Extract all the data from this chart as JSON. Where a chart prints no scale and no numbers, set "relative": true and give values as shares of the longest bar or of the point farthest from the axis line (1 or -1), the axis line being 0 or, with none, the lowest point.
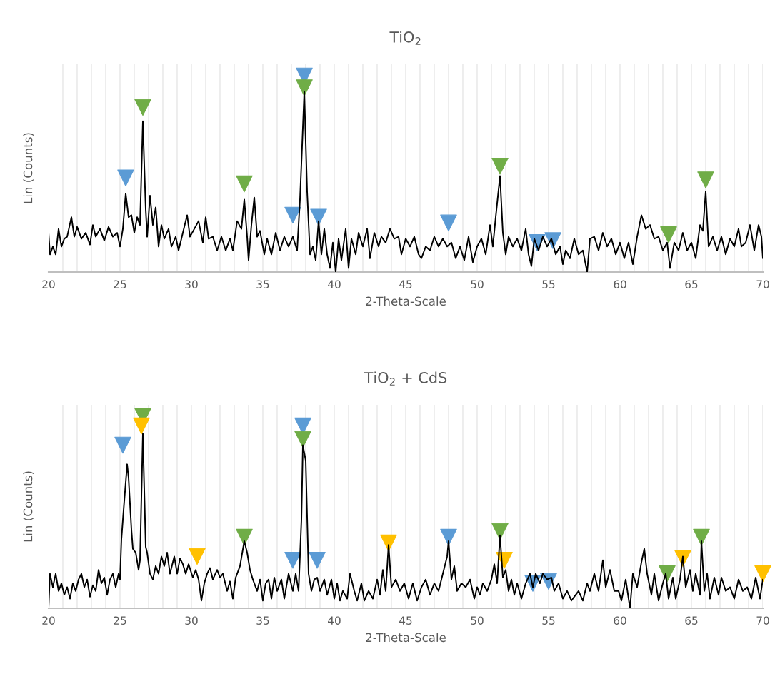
{
  "chart_data": [
    {
      "type": "line",
      "title": "TiO$_{2}$",
      "xlabel": "2-Theta-Scale",
      "ylabel": "Lin (Counts)",
      "xlim": [
        20,
        70
      ],
      "xticks": [
        20,
        25,
        30,
        35,
        40,
        45,
        50,
        55,
        60,
        65,
        70
      ],
      "relative": true,
      "grid": "x",
      "series": [
        {
          "color": "#000000",
          "x": [
            20.0,
            20.1,
            20.3,
            20.5,
            20.7,
            20.9,
            21.1,
            21.3,
            21.6,
            21.8,
            22.0,
            22.3,
            22.6,
            22.9,
            23.1,
            23.3,
            23.6,
            23.9,
            24.2,
            24.5,
            24.8,
            25.0,
            25.2,
            25.4,
            25.6,
            25.8,
            26.0,
            26.2,
            26.4,
            26.6,
            26.8,
            26.9,
            27.1,
            27.3,
            27.5,
            27.7,
            27.9,
            28.1,
            28.4,
            28.6,
            28.9,
            29.1,
            29.4,
            29.7,
            29.9,
            30.2,
            30.5,
            30.8,
            31.0,
            31.2,
            31.5,
            31.8,
            32.1,
            32.4,
            32.7,
            32.9,
            33.2,
            33.5,
            33.7,
            33.9,
            34.0,
            34.2,
            34.4,
            34.6,
            34.8,
            35.1,
            35.3,
            35.6,
            35.9,
            36.2,
            36.5,
            36.8,
            37.1,
            37.4,
            37.6,
            37.9,
            38.1,
            38.3,
            38.5,
            38.7,
            38.9,
            39.1,
            39.3,
            39.5,
            39.7,
            39.9,
            40.1,
            40.3,
            40.5,
            40.8,
            41.0,
            41.2,
            41.5,
            41.7,
            42.0,
            42.3,
            42.5,
            42.8,
            43.1,
            43.3,
            43.6,
            43.9,
            44.2,
            44.5,
            44.7,
            45.0,
            45.3,
            45.6,
            45.9,
            46.1,
            46.4,
            46.7,
            47.0,
            47.3,
            47.6,
            47.9,
            48.2,
            48.5,
            48.8,
            49.1,
            49.4,
            49.7,
            50.0,
            50.3,
            50.6,
            50.9,
            51.1,
            51.3,
            51.6,
            51.8,
            52.0,
            52.2,
            52.5,
            52.8,
            53.1,
            53.4,
            53.6,
            53.8,
            54.0,
            54.3,
            54.6,
            54.9,
            55.2,
            55.5,
            55.8,
            56.0,
            56.2,
            56.5,
            56.8,
            57.1,
            57.4,
            57.7,
            57.9,
            58.2,
            58.5,
            58.8,
            59.1,
            59.4,
            59.7,
            60.0,
            60.3,
            60.6,
            60.9,
            61.2,
            61.5,
            61.8,
            62.1,
            62.4,
            62.7,
            63.0,
            63.3,
            63.5,
            63.8,
            64.1,
            64.4,
            64.7,
            65.0,
            65.3,
            65.6,
            65.8,
            66.0,
            66.2,
            66.5,
            66.8,
            67.1,
            67.4,
            67.7,
            68.0,
            68.3,
            68.5,
            68.8,
            69.1,
            69.4,
            69.7,
            69.9,
            70.0
          ],
          "values": [
            0.2,
            0.09,
            0.13,
            0.09,
            0.22,
            0.13,
            0.17,
            0.18,
            0.28,
            0.18,
            0.23,
            0.17,
            0.2,
            0.14,
            0.24,
            0.18,
            0.22,
            0.16,
            0.23,
            0.18,
            0.2,
            0.13,
            0.22,
            0.4,
            0.28,
            0.29,
            0.2,
            0.28,
            0.24,
            0.77,
            0.32,
            0.18,
            0.39,
            0.24,
            0.33,
            0.13,
            0.24,
            0.17,
            0.22,
            0.13,
            0.18,
            0.11,
            0.2,
            0.29,
            0.18,
            0.22,
            0.26,
            0.15,
            0.28,
            0.17,
            0.18,
            0.11,
            0.18,
            0.11,
            0.17,
            0.11,
            0.26,
            0.22,
            0.37,
            0.18,
            0.06,
            0.24,
            0.38,
            0.18,
            0.21,
            0.09,
            0.17,
            0.09,
            0.2,
            0.11,
            0.18,
            0.13,
            0.18,
            0.11,
            0.37,
            0.92,
            0.41,
            0.09,
            0.13,
            0.06,
            0.26,
            0.09,
            0.22,
            0.09,
            0.02,
            0.15,
            0,
            0.17,
            0.06,
            0.22,
            0.02,
            0.17,
            0.09,
            0.2,
            0.13,
            0.22,
            0.07,
            0.2,
            0.13,
            0.18,
            0.15,
            0.22,
            0.17,
            0.18,
            0.09,
            0.17,
            0.13,
            0.18,
            0.09,
            0.07,
            0.13,
            0.11,
            0.18,
            0.13,
            0.17,
            0.13,
            0.15,
            0.07,
            0.13,
            0.06,
            0.18,
            0.05,
            0.13,
            0.17,
            0.09,
            0.24,
            0.13,
            0.28,
            0.49,
            0.2,
            0.09,
            0.18,
            0.13,
            0.17,
            0.11,
            0.22,
            0.09,
            0.03,
            0.17,
            0.11,
            0.18,
            0.13,
            0.17,
            0.09,
            0.13,
            0.04,
            0.11,
            0.07,
            0.17,
            0.09,
            0.11,
            0,
            0.17,
            0.18,
            0.11,
            0.2,
            0.13,
            0.17,
            0.09,
            0.15,
            0.07,
            0.15,
            0.04,
            0.18,
            0.29,
            0.22,
            0.24,
            0.17,
            0.18,
            0.11,
            0.15,
            0.02,
            0.15,
            0.11,
            0.2,
            0.11,
            0.15,
            0.07,
            0.24,
            0.21,
            0.41,
            0.13,
            0.18,
            0.11,
            0.18,
            0.09,
            0.17,
            0.13,
            0.22,
            0.13,
            0.15,
            0.24,
            0.11,
            0.24,
            0.18,
            0.07
          ]
        },
        {
          "type": "scatter",
          "color": "#5b9bd5",
          "marker": "triangle",
          "x": [
            25.4,
            37.1,
            37.9,
            38.9,
            48.0,
            54.2,
            55.3
          ],
          "values": [
            0.48,
            0.29,
            1.0,
            0.28,
            0.25,
            0.15,
            0.16
          ]
        },
        {
          "type": "scatter",
          "color": "#70ad47",
          "marker": "triangle",
          "x": [
            26.6,
            33.7,
            37.9,
            51.6,
            63.4,
            66.0
          ],
          "values": [
            0.84,
            0.45,
            0.94,
            0.54,
            0.19,
            0.47
          ]
        }
      ]
    },
    {
      "type": "line",
      "title": "TiO$_{2}$ + CdS",
      "xlabel": "2-Theta-Scale",
      "ylabel": "Lin (Counts)",
      "xlim": [
        20,
        70
      ],
      "xticks": [
        20,
        25,
        30,
        35,
        40,
        45,
        50,
        55,
        60,
        65,
        70
      ],
      "relative": true,
      "grid": "x",
      "series": [
        {
          "color": "#000000",
          "x": [
            20.0,
            20.1,
            20.3,
            20.5,
            20.7,
            20.9,
            21.1,
            21.3,
            21.5,
            21.7,
            21.9,
            22.1,
            22.3,
            22.5,
            22.7,
            22.9,
            23.1,
            23.3,
            23.5,
            23.7,
            23.9,
            24.1,
            24.3,
            24.5,
            24.7,
            24.9,
            25.0,
            25.1,
            25.3,
            25.5,
            25.6,
            25.8,
            25.9,
            26.1,
            26.3,
            26.4,
            26.6,
            26.8,
            26.9,
            27.1,
            27.3,
            27.5,
            27.7,
            27.9,
            28.1,
            28.3,
            28.5,
            28.8,
            29.0,
            29.2,
            29.4,
            29.6,
            29.8,
            30.1,
            30.3,
            30.5,
            30.7,
            30.9,
            31.1,
            31.3,
            31.5,
            31.8,
            32.0,
            32.2,
            32.5,
            32.7,
            32.9,
            33.1,
            33.4,
            33.7,
            33.9,
            34.1,
            34.3,
            34.6,
            34.8,
            35.0,
            35.2,
            35.4,
            35.6,
            35.8,
            36.0,
            36.3,
            36.5,
            36.8,
            37.1,
            37.3,
            37.5,
            37.7,
            37.8,
            38.0,
            38.2,
            38.4,
            38.6,
            38.8,
            39.0,
            39.3,
            39.5,
            39.8,
            40.0,
            40.2,
            40.4,
            40.6,
            40.9,
            41.1,
            41.4,
            41.6,
            41.9,
            42.1,
            42.4,
            42.7,
            43.0,
            43.2,
            43.4,
            43.6,
            43.8,
            44.0,
            44.3,
            44.6,
            44.9,
            45.2,
            45.5,
            45.8,
            46.1,
            46.4,
            46.7,
            47.0,
            47.3,
            47.6,
            47.9,
            48.0,
            48.2,
            48.4,
            48.6,
            48.9,
            49.2,
            49.5,
            49.8,
            50.0,
            50.2,
            50.4,
            50.7,
            51.0,
            51.2,
            51.4,
            51.6,
            51.8,
            52.0,
            52.2,
            52.4,
            52.6,
            52.8,
            53.1,
            53.4,
            53.7,
            53.9,
            54.1,
            54.4,
            54.6,
            54.9,
            55.2,
            55.4,
            55.7,
            56.0,
            56.3,
            56.6,
            56.9,
            57.1,
            57.4,
            57.7,
            57.9,
            58.2,
            58.5,
            58.8,
            59.0,
            59.3,
            59.6,
            59.9,
            60.1,
            60.4,
            60.7,
            60.9,
            61.2,
            61.5,
            61.7,
            61.9,
            62.2,
            62.4,
            62.7,
            63.0,
            63.2,
            63.4,
            63.7,
            63.9,
            64.2,
            64.4,
            64.6,
            64.9,
            65.1,
            65.3,
            65.6,
            65.7,
            65.9,
            66.1,
            66.3,
            66.6,
            66.9,
            67.1,
            67.4,
            67.7,
            68.0,
            68.3,
            68.6,
            68.9,
            69.2,
            69.5,
            69.8,
            70.0
          ],
          "values": [
            0,
            0.18,
            0.11,
            0.18,
            0.09,
            0.13,
            0.07,
            0.11,
            0.05,
            0.13,
            0.09,
            0.15,
            0.18,
            0.11,
            0.15,
            0.06,
            0.12,
            0.09,
            0.2,
            0.13,
            0.16,
            0.07,
            0.15,
            0.18,
            0.11,
            0.18,
            0.15,
            0.36,
            0.56,
            0.75,
            0.68,
            0.41,
            0.31,
            0.29,
            0.2,
            0.25,
            0.91,
            0.32,
            0.29,
            0.18,
            0.15,
            0.22,
            0.18,
            0.27,
            0.22,
            0.29,
            0.18,
            0.27,
            0.18,
            0.26,
            0.23,
            0.18,
            0.23,
            0.16,
            0.2,
            0.15,
            0.04,
            0.13,
            0.18,
            0.21,
            0.15,
            0.2,
            0.16,
            0.18,
            0.09,
            0.14,
            0.05,
            0.16,
            0.22,
            0.35,
            0.29,
            0.2,
            0.15,
            0.09,
            0.15,
            0.04,
            0.13,
            0.15,
            0.05,
            0.16,
            0.09,
            0.15,
            0.05,
            0.18,
            0.09,
            0.18,
            0.09,
            0.46,
            0.85,
            0.77,
            0.18,
            0.09,
            0.15,
            0.16,
            0.09,
            0.15,
            0.07,
            0.15,
            0.05,
            0.13,
            0.04,
            0.09,
            0.05,
            0.18,
            0.09,
            0.04,
            0.13,
            0.04,
            0.09,
            0.05,
            0.15,
            0.07,
            0.2,
            0.09,
            0.33,
            0.11,
            0.15,
            0.09,
            0.13,
            0.05,
            0.13,
            0.04,
            0.11,
            0.15,
            0.07,
            0.13,
            0.09,
            0.18,
            0.27,
            0.35,
            0.15,
            0.22,
            0.09,
            0.13,
            0.11,
            0.15,
            0.05,
            0.11,
            0.07,
            0.13,
            0.09,
            0.15,
            0.23,
            0.13,
            0.38,
            0.16,
            0.2,
            0.09,
            0.15,
            0.07,
            0.13,
            0.05,
            0.13,
            0.18,
            0.11,
            0.18,
            0.13,
            0.18,
            0.15,
            0.16,
            0.09,
            0.13,
            0.05,
            0.09,
            0.04,
            0.07,
            0.09,
            0.04,
            0.13,
            0.09,
            0.18,
            0.09,
            0.25,
            0.11,
            0.2,
            0.09,
            0.09,
            0.04,
            0.15,
            0,
            0.18,
            0.11,
            0.24,
            0.31,
            0.18,
            0.07,
            0.18,
            0.04,
            0.13,
            0.18,
            0.05,
            0.16,
            0.05,
            0.15,
            0.27,
            0.11,
            0.2,
            0.09,
            0.18,
            0.07,
            0.35,
            0.09,
            0.18,
            0.05,
            0.16,
            0.07,
            0.16,
            0.09,
            0.11,
            0.05,
            0.15,
            0.09,
            0.11,
            0.05,
            0.16,
            0.05,
            0.15
          ]
        },
        {
          "type": "scatter",
          "color": "#5b9bd5",
          "marker": "triangle",
          "x": [
            25.2,
            37.1,
            37.8,
            38.8,
            48.0,
            53.9,
            55.0
          ],
          "values": [
            0.85,
            0.25,
            0.95,
            0.25,
            0.37,
            0.13,
            0.14
          ]
        },
        {
          "type": "scatter",
          "color": "#70ad47",
          "marker": "triangle",
          "x": [
            26.6,
            33.7,
            37.8,
            51.6,
            63.3,
            65.7
          ],
          "values": [
            1.0,
            0.37,
            0.88,
            0.4,
            0.18,
            0.37
          ]
        },
        {
          "type": "scatter",
          "color": "#ffc000",
          "marker": "triangle",
          "x": [
            26.5,
            30.4,
            43.8,
            51.9,
            64.4,
            70.0
          ],
          "values": [
            0.95,
            0.27,
            0.34,
            0.25,
            0.26,
            0.18
          ]
        }
      ]
    }
  ]
}
